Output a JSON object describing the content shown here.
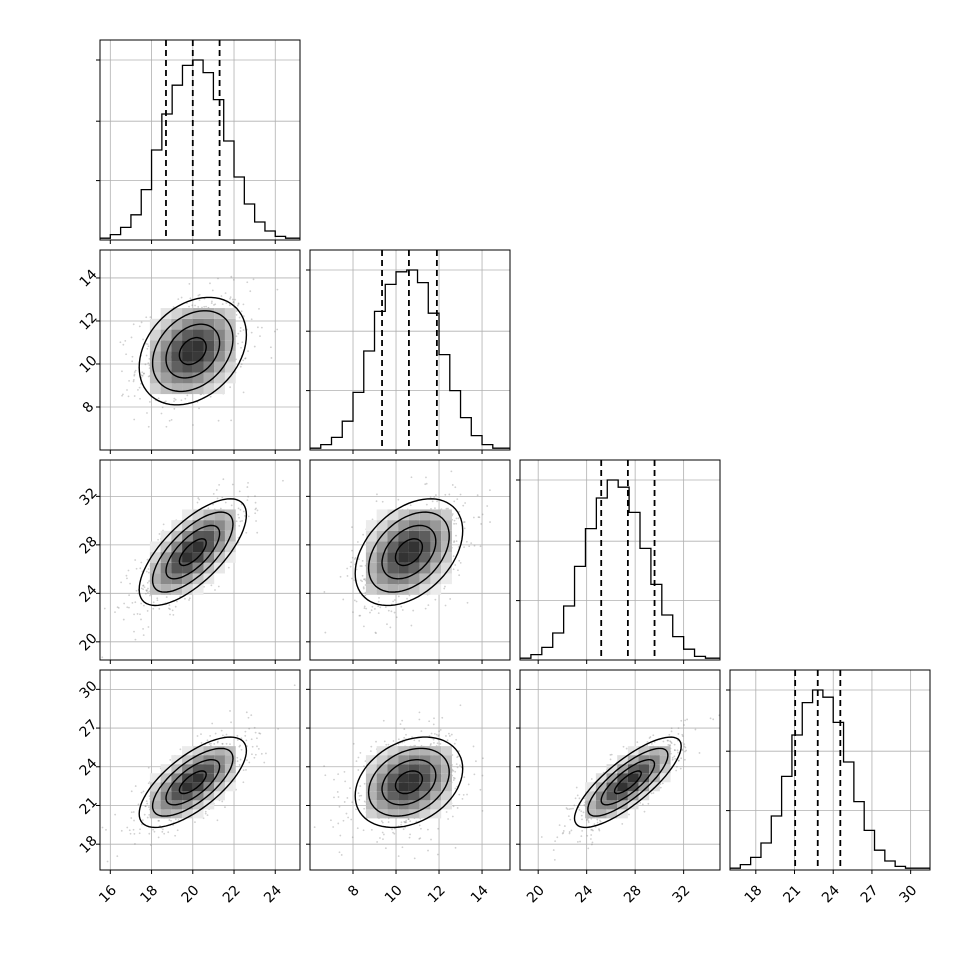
{
  "chart_data": {
    "type": "corner",
    "grid": true,
    "parameters": [
      {
        "id": "p1",
        "mean": 20.0,
        "sd": 1.3,
        "range": [
          15.5,
          25.2
        ],
        "ticks": [
          16,
          18,
          20,
          22,
          24
        ],
        "tick_labels": [
          "16",
          "18",
          "20",
          "22",
          "24"
        ],
        "quantiles": [
          18.7,
          20.0,
          21.3
        ]
      },
      {
        "id": "p2",
        "mean": 10.6,
        "sd": 1.25,
        "range": [
          6.0,
          15.3
        ],
        "ticks": [
          8,
          10,
          12,
          14
        ],
        "tick_labels": [
          "8",
          "10",
          "12",
          "14"
        ],
        "quantiles": [
          9.35,
          10.6,
          11.9
        ]
      },
      {
        "id": "p3",
        "mean": 27.4,
        "sd": 2.2,
        "range": [
          18.5,
          35.0
        ],
        "ticks": [
          20,
          24,
          28,
          32
        ],
        "tick_labels": [
          "20",
          "24",
          "28",
          "32"
        ],
        "quantiles": [
          25.2,
          27.4,
          29.6
        ]
      },
      {
        "id": "p4",
        "mean": 22.8,
        "sd": 1.75,
        "range": [
          16.0,
          31.5
        ],
        "ticks": [
          18,
          21,
          24,
          27,
          30
        ],
        "tick_labels": [
          "18",
          "21",
          "24",
          "27",
          "30"
        ],
        "quantiles": [
          21.05,
          22.8,
          24.55
        ]
      }
    ],
    "correlations": {
      "0-1": 0.3,
      "0-2": 0.7,
      "1-2": 0.4,
      "0-3": 0.7,
      "1-3": 0.3,
      "2-3": 0.8
    },
    "histograms": [
      {
        "param": 0,
        "bin_edges": [
          15.5,
          16.0,
          16.5,
          17.0,
          17.5,
          18.0,
          18.5,
          19.0,
          19.5,
          20.0,
          20.5,
          21.0,
          21.5,
          22.0,
          22.5,
          23.0,
          23.5,
          24.0,
          24.5,
          25.0
        ],
        "counts": [
          0.01,
          0.03,
          0.07,
          0.14,
          0.28,
          0.5,
          0.7,
          0.86,
          0.97,
          1.0,
          0.93,
          0.78,
          0.55,
          0.35,
          0.2,
          0.1,
          0.05,
          0.02,
          0.01
        ]
      },
      {
        "param": 1,
        "bin_edges": [
          6.0,
          6.5,
          7.0,
          7.5,
          8.0,
          8.5,
          9.0,
          9.5,
          10.0,
          10.5,
          11.0,
          11.5,
          12.0,
          12.5,
          13.0,
          13.5,
          14.0,
          14.5,
          15.0
        ],
        "counts": [
          0.01,
          0.03,
          0.07,
          0.16,
          0.32,
          0.55,
          0.77,
          0.92,
          0.99,
          1.0,
          0.93,
          0.76,
          0.53,
          0.33,
          0.18,
          0.08,
          0.03,
          0.01
        ]
      },
      {
        "param": 2,
        "bin_edges": [
          18.5,
          19.4,
          20.3,
          21.2,
          22.1,
          23.0,
          23.9,
          24.8,
          25.7,
          26.6,
          27.5,
          28.4,
          29.3,
          30.2,
          31.1,
          32.0,
          32.9,
          33.8,
          34.7
        ],
        "counts": [
          0.01,
          0.03,
          0.07,
          0.15,
          0.3,
          0.52,
          0.73,
          0.9,
          1.0,
          0.96,
          0.82,
          0.62,
          0.42,
          0.25,
          0.13,
          0.06,
          0.02,
          0.01
        ]
      },
      {
        "param": 3,
        "bin_edges": [
          16.0,
          16.8,
          17.6,
          18.4,
          19.2,
          20.0,
          20.8,
          21.6,
          22.4,
          23.2,
          24.0,
          24.8,
          25.6,
          26.4,
          27.2,
          28.0,
          28.8,
          29.6,
          30.4
        ],
        "counts": [
          0.01,
          0.03,
          0.07,
          0.15,
          0.3,
          0.52,
          0.75,
          0.93,
          1.0,
          0.96,
          0.82,
          0.6,
          0.38,
          0.22,
          0.11,
          0.05,
          0.02,
          0.01
        ]
      }
    ]
  }
}
